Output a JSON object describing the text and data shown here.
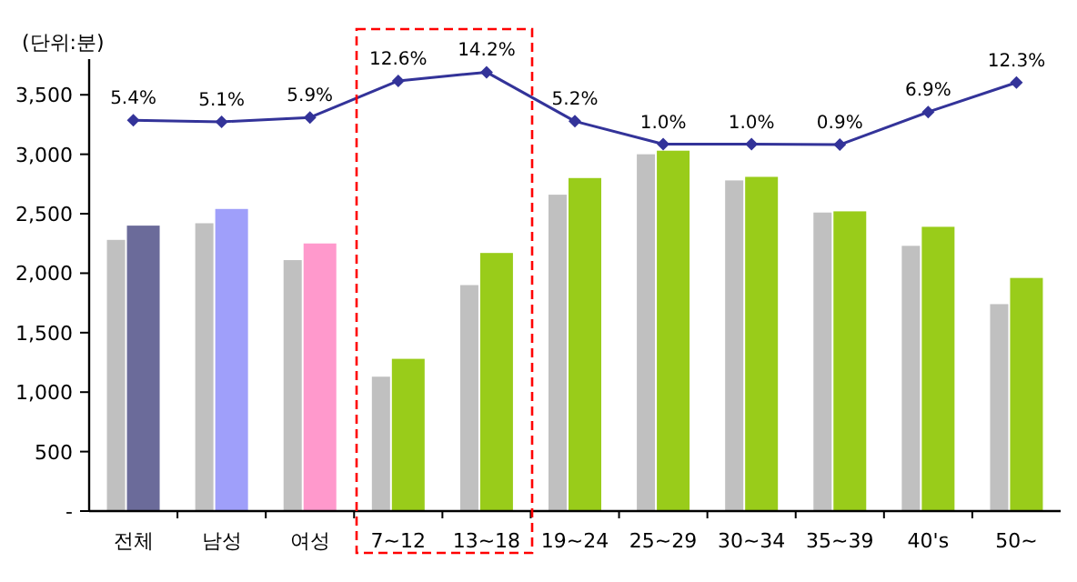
{
  "chart_data": {
    "type": "bar",
    "ylabel": "(단위:분)",
    "categories": [
      "전체",
      "남성",
      "여성",
      "7~12",
      "13~18",
      "19~24",
      "25~29",
      "30~34",
      "35~39",
      "40's",
      "50~"
    ],
    "series": [
      {
        "color": "#c0c0c0",
        "values": [
          2280,
          2420,
          2110,
          1130,
          1900,
          2660,
          3000,
          2780,
          2510,
          2230,
          1740
        ]
      },
      {
        "colors": [
          "#6b6b9a",
          "#9f9ffa",
          "#ff99cc",
          "#99cc1a",
          "#99cc1a",
          "#99cc1a",
          "#99cc1a",
          "#99cc1a",
          "#99cc1a",
          "#99cc1a",
          "#99cc1a"
        ],
        "values": [
          2400,
          2540,
          2250,
          1280,
          2170,
          2800,
          3030,
          2810,
          2520,
          2390,
          1960
        ]
      },
      {
        "type": "line",
        "axis": "y2",
        "color": "#333399",
        "marker": "diamond",
        "values": [
          5.4,
          5.1,
          5.9,
          12.6,
          14.2,
          5.2,
          1.0,
          1.0,
          0.9,
          6.9,
          12.3
        ],
        "value_labels": [
          "5.4%",
          "5.1%",
          "5.9%",
          "12.6%",
          "14.2%",
          "5.2%",
          "1.0%",
          "1.0%",
          "0.9%",
          "6.9%",
          "12.3%"
        ]
      }
    ],
    "ylim": [
      0,
      3800
    ],
    "yticks": [
      {
        "value": 0,
        "label": "-"
      },
      500,
      {
        "value": 1000,
        "label": "1,000"
      },
      {
        "value": 1500,
        "label": "1,500"
      },
      {
        "value": 2000,
        "label": "2,000"
      },
      {
        "value": 2500,
        "label": "2,500"
      },
      {
        "value": 3000,
        "label": "3,000"
      },
      {
        "value": 3500,
        "label": "3,500"
      }
    ],
    "y2lim": [
      -66.3,
      16.6
    ]
  }
}
